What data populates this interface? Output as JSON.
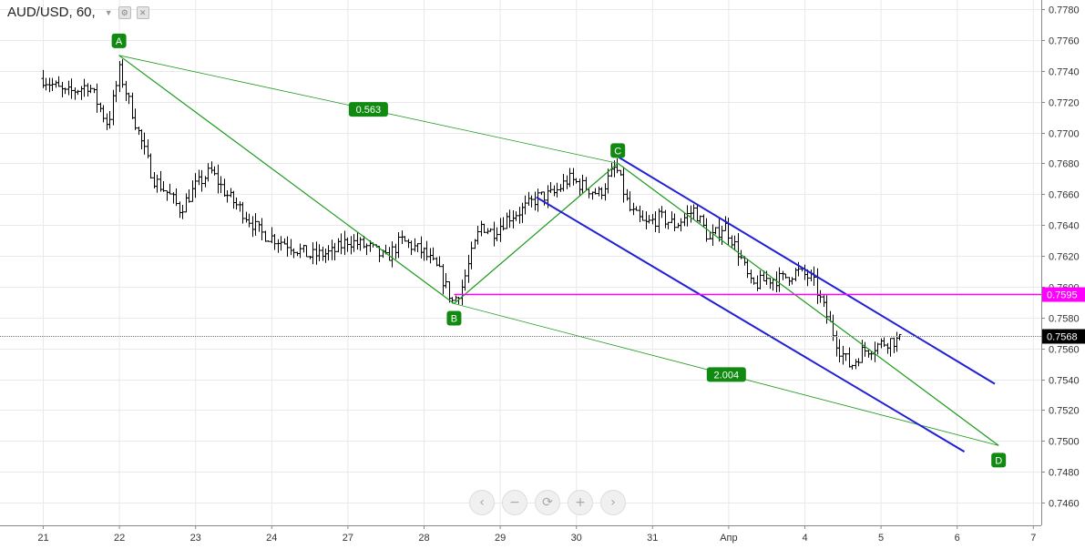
{
  "header": {
    "symbol": "AUD/USD, 60,"
  },
  "colors": {
    "pattern": "#1a9a1a",
    "label_bg": "#118a11",
    "channel": "#1f1fd6",
    "level": "#ff00ff",
    "bar": "#000000",
    "grid": "#e9e9e9"
  },
  "navigation": [
    "‹",
    "−",
    "⟳",
    "+",
    "›"
  ],
  "chart_data": {
    "type": "ohlc",
    "instrument": "AUD/USD",
    "timeframe": "60",
    "x": [
      "21",
      "22",
      "23",
      "24",
      "27",
      "28",
      "29",
      "30",
      "31",
      "Апр",
      "4",
      "5",
      "6",
      "7"
    ],
    "ylim": [
      0.745,
      0.7785
    ],
    "y_ticks": [
      "0.7460",
      "0.7480",
      "0.7500",
      "0.7520",
      "0.7540",
      "0.7560",
      "0.7580",
      "0.7600",
      "0.7620",
      "0.7640",
      "0.7660",
      "0.7680",
      "0.7700",
      "0.7720",
      "0.7740",
      "0.7760",
      "0.7780"
    ],
    "grid": true,
    "last_price": "0.7568",
    "horizontal_level": {
      "value": 0.7595,
      "label": "0.7595"
    },
    "price_path": [
      [
        0.0,
        0.7735
      ],
      [
        0.3,
        0.7725
      ],
      [
        0.6,
        0.7731
      ],
      [
        0.85,
        0.7705
      ],
      [
        1.0,
        0.774
      ],
      [
        1.25,
        0.77
      ],
      [
        1.45,
        0.767
      ],
      [
        1.65,
        0.766
      ],
      [
        1.8,
        0.765
      ],
      [
        2.0,
        0.7665
      ],
      [
        2.2,
        0.7675
      ],
      [
        2.4,
        0.766
      ],
      [
        2.6,
        0.765
      ],
      [
        2.85,
        0.7635
      ],
      [
        3.0,
        0.7632
      ],
      [
        3.2,
        0.7628
      ],
      [
        3.5,
        0.762
      ],
      [
        3.8,
        0.7622
      ],
      [
        4.0,
        0.763
      ],
      [
        4.3,
        0.7625
      ],
      [
        4.5,
        0.7618
      ],
      [
        4.7,
        0.763
      ],
      [
        5.0,
        0.7622
      ],
      [
        5.2,
        0.761
      ],
      [
        5.38,
        0.759
      ],
      [
        5.5,
        0.76
      ],
      [
        5.62,
        0.762
      ],
      [
        5.75,
        0.764
      ],
      [
        5.9,
        0.7635
      ],
      [
        6.1,
        0.7645
      ],
      [
        6.3,
        0.765
      ],
      [
        6.5,
        0.7658
      ],
      [
        6.7,
        0.766
      ],
      [
        6.9,
        0.767
      ],
      [
        7.1,
        0.7665
      ],
      [
        7.3,
        0.766
      ],
      [
        7.52,
        0.7678
      ],
      [
        7.7,
        0.765
      ],
      [
        7.9,
        0.764
      ],
      [
        8.1,
        0.7645
      ],
      [
        8.3,
        0.764
      ],
      [
        8.55,
        0.765
      ],
      [
        8.75,
        0.763
      ],
      [
        8.95,
        0.764
      ],
      [
        9.15,
        0.762
      ],
      [
        9.3,
        0.76
      ],
      [
        9.5,
        0.7605
      ],
      [
        9.7,
        0.7605
      ],
      [
        9.9,
        0.761
      ],
      [
        10.1,
        0.7605
      ],
      [
        10.3,
        0.758
      ],
      [
        10.45,
        0.756
      ],
      [
        10.6,
        0.7548
      ],
      [
        10.75,
        0.7558
      ],
      [
        10.95,
        0.7562
      ],
      [
        11.1,
        0.7565
      ],
      [
        11.25,
        0.7565
      ]
    ],
    "pattern": {
      "type": "ABCD",
      "points": [
        {
          "label": "A",
          "x": 1.0,
          "y": 0.775
        },
        {
          "label": "B",
          "x": 5.4,
          "y": 0.7589
        },
        {
          "label": "C",
          "x": 7.55,
          "y": 0.768
        },
        {
          "label": "D",
          "x": 12.55,
          "y": 0.7497
        }
      ],
      "ratios": [
        {
          "label": "0.563",
          "from": "A",
          "to": "C"
        },
        {
          "label": "2.004",
          "from": "B",
          "to": "D"
        }
      ]
    },
    "channel": [
      {
        "x1": 7.56,
        "y1": 0.7684,
        "x2": 12.5,
        "y2": 0.7537
      },
      {
        "x1": 6.48,
        "y1": 0.7658,
        "x2": 12.1,
        "y2": 0.7493
      }
    ]
  }
}
